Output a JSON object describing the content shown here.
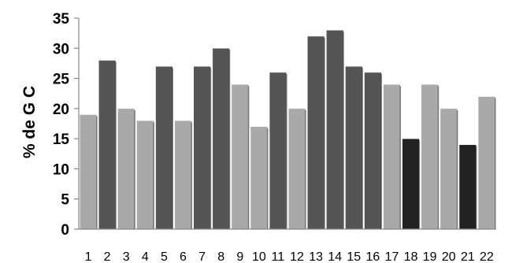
{
  "chart_data": {
    "type": "bar",
    "title": "",
    "xlabel": "",
    "ylabel": "% de G C",
    "ylim": [
      0,
      35
    ],
    "yticks": [
      0,
      5,
      10,
      15,
      20,
      25,
      30,
      35
    ],
    "grid": false,
    "categories": [
      "1",
      "2",
      "3",
      "4",
      "5",
      "6",
      "7",
      "8",
      "9",
      "10",
      "11",
      "12",
      "13",
      "14",
      "15",
      "16",
      "17",
      "18",
      "19",
      "20",
      "21",
      "22"
    ],
    "values": [
      19,
      28,
      20,
      18,
      27,
      18,
      27,
      30,
      24,
      17,
      26,
      20,
      32,
      33,
      27,
      26,
      24,
      15,
      24,
      20,
      14,
      22
    ],
    "bar_colors": [
      "#a9a9a9",
      "#555555",
      "#a9a9a9",
      "#a9a9a9",
      "#555555",
      "#a9a9a9",
      "#555555",
      "#555555",
      "#a9a9a9",
      "#a9a9a9",
      "#555555",
      "#a9a9a9",
      "#555555",
      "#555555",
      "#555555",
      "#555555",
      "#a9a9a9",
      "#222222",
      "#a9a9a9",
      "#a9a9a9",
      "#222222",
      "#a9a9a9"
    ]
  }
}
